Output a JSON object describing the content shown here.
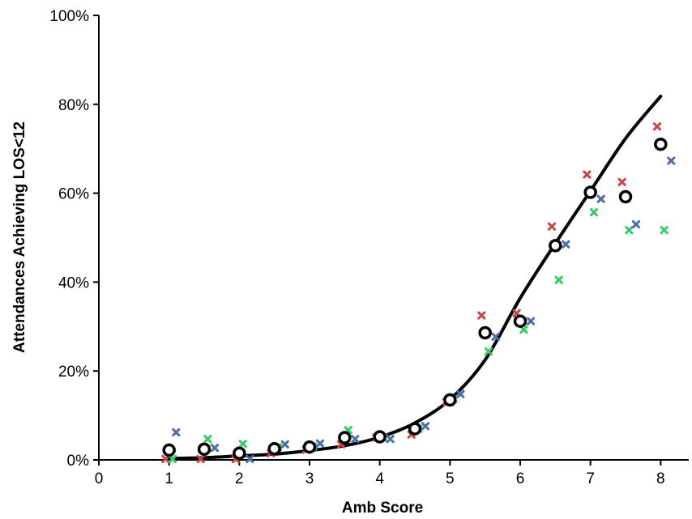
{
  "chart_data": {
    "type": "scatter",
    "title": "",
    "xlabel": "Amb Score",
    "ylabel": "Attendances Achieving LOS<12",
    "xlim": [
      0,
      8.4
    ],
    "ylim": [
      0,
      100
    ],
    "x_ticks": [
      0,
      1,
      2,
      3,
      4,
      5,
      6,
      7,
      8
    ],
    "x_tick_labels": [
      "0",
      "1",
      "2",
      "3",
      "4",
      "5",
      "6",
      "7",
      "8"
    ],
    "y_ticks": [
      0,
      20,
      40,
      60,
      80,
      100
    ],
    "y_tick_labels": [
      "0%",
      "20%",
      "40%",
      "60%",
      "80%",
      "100%"
    ],
    "grid": false,
    "legend": "none",
    "series": [
      {
        "marker": "circle",
        "color": "#000000",
        "x": [
          1,
          1.5,
          2,
          2.5,
          3,
          3.5,
          4,
          4.5,
          5,
          5.5,
          6,
          6.5,
          7,
          7.5,
          8
        ],
        "y": [
          2.2,
          2.4,
          1.5,
          2.5,
          2.9,
          5.0,
          5.2,
          7.0,
          13.5,
          28.6,
          31.2,
          48.2,
          60.2,
          59.2,
          71.0
        ]
      },
      {
        "marker": "x",
        "color": "#cc4444",
        "x": [
          0.95,
          1.45,
          1.95,
          2.45,
          2.95,
          3.45,
          3.95,
          4.45,
          4.95,
          5.45,
          5.95,
          6.45,
          6.95,
          7.45,
          7.95
        ],
        "y": [
          0.2,
          0.2,
          0.2,
          1.5,
          2.3,
          3.5,
          5.0,
          5.7,
          13.0,
          32.5,
          33.0,
          52.5,
          64.2,
          62.5,
          75.0
        ]
      },
      {
        "marker": "x",
        "color": "#33cc66",
        "x": [
          1.05,
          1.55,
          2.05,
          2.55,
          3.05,
          3.55,
          4.05,
          4.55,
          5.05,
          5.55,
          6.05,
          6.55,
          7.05,
          7.55,
          8.05
        ],
        "y": [
          0.2,
          4.7,
          3.6,
          2.8,
          3.0,
          6.7,
          5.0,
          7.0,
          13.7,
          24.4,
          29.3,
          40.5,
          55.7,
          51.7,
          51.7
        ]
      },
      {
        "marker": "x",
        "color": "#4a6fa5",
        "x": [
          1.1,
          1.65,
          2.15,
          2.65,
          3.15,
          3.65,
          4.15,
          4.65,
          5.15,
          5.65,
          6.15,
          6.65,
          7.15,
          7.65,
          8.15
        ],
        "y": [
          6.2,
          2.7,
          0.2,
          3.5,
          3.7,
          4.7,
          4.7,
          7.6,
          14.8,
          27.7,
          31.2,
          48.5,
          58.7,
          53.0,
          67.3
        ]
      },
      {
        "marker": "line",
        "color": "#000000",
        "x": [
          1,
          1.5,
          2,
          2.5,
          3,
          3.5,
          4,
          4.5,
          5,
          5.5,
          6,
          6.5,
          7,
          7.5,
          8
        ],
        "y": [
          0.3,
          0.5,
          0.9,
          1.3,
          2.1,
          3.2,
          5.1,
          8.3,
          13.6,
          22.5,
          36.4,
          48.7,
          60.5,
          72.3,
          81.8
        ]
      }
    ]
  }
}
